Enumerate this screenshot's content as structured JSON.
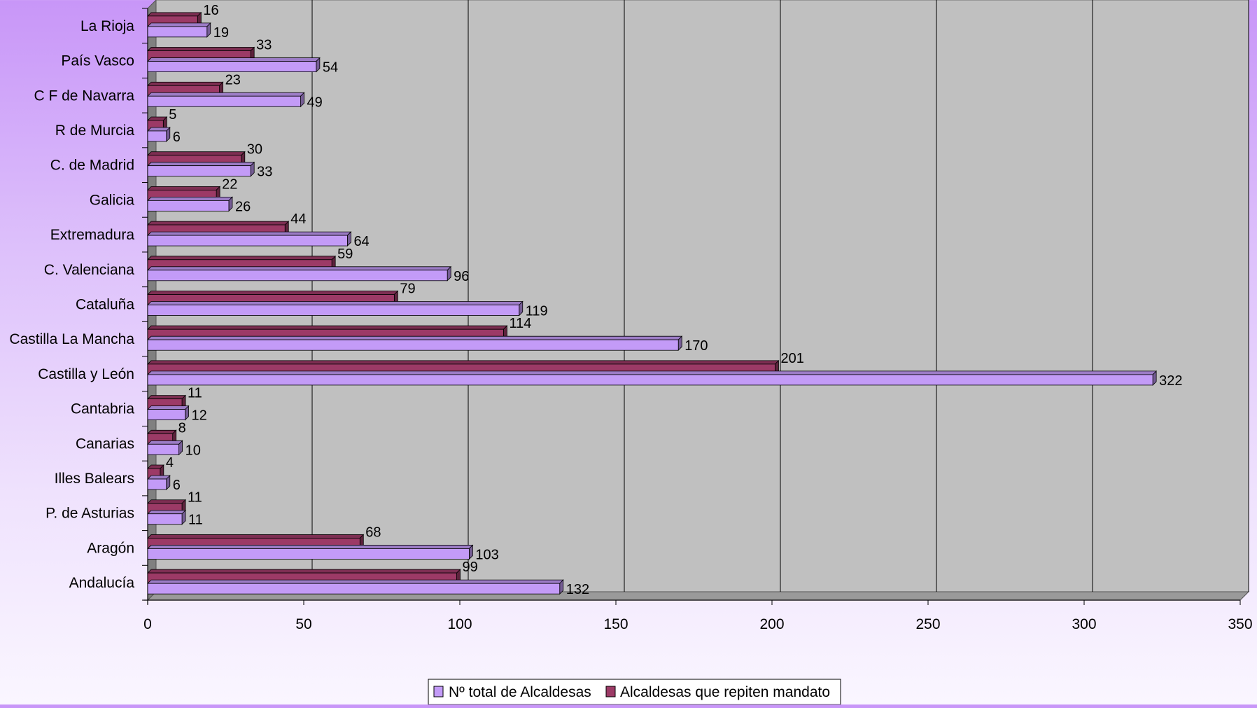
{
  "chart_data": {
    "type": "bar",
    "orientation": "horizontal",
    "categories": [
      "La Rioja",
      "País Vasco",
      "C F de Navarra",
      "R de Murcia",
      "C. de Madrid",
      "Galicia",
      "Extremadura",
      "C. Valenciana",
      "Cataluña",
      "Castilla La Mancha",
      "Castilla y León",
      "Cantabria",
      "Canarias",
      "Illes Balears",
      "P. de Asturias",
      "Aragón",
      "Andalucía"
    ],
    "series": [
      {
        "name": "Nº total de Alcaldesas",
        "color": "#c39bf7",
        "values": [
          19,
          54,
          49,
          6,
          33,
          26,
          64,
          96,
          119,
          170,
          322,
          12,
          10,
          6,
          11,
          103,
          132
        ]
      },
      {
        "name": "Alcaldesas que repiten mandato",
        "color": "#9c3a66",
        "values": [
          16,
          33,
          23,
          5,
          30,
          22,
          44,
          59,
          79,
          114,
          201,
          11,
          8,
          4,
          11,
          68,
          99
        ]
      }
    ],
    "xlim": [
      0,
      350
    ],
    "xticks": [
      "0",
      "50",
      "100",
      "150",
      "200",
      "250",
      "300",
      "350"
    ],
    "grid": true,
    "legend_position": "bottom",
    "wall_color": "#c0c0c0"
  }
}
